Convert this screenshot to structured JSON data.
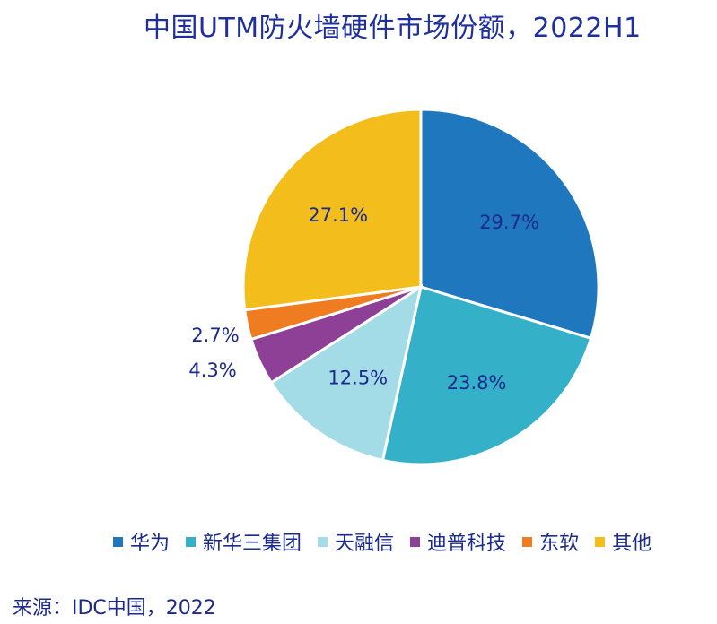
{
  "colors": {
    "title": "#1f2fa0",
    "label_dark": "#1b2a8c",
    "series": [
      "#1f77be",
      "#35b0c9",
      "#a3dce6",
      "#8e3f96",
      "#f07c22",
      "#f3be1c"
    ]
  },
  "chart_data": {
    "type": "pie",
    "title": "中国UTM防火墙硬件市场份额，2022H1",
    "categories": [
      "华为",
      "新华三集团",
      "天融信",
      "迪普科技",
      "东软",
      "其他"
    ],
    "values": [
      29.7,
      23.8,
      12.5,
      4.3,
      2.7,
      27.1
    ],
    "labels": [
      "29.7%",
      "23.8%",
      "12.5%",
      "4.3%",
      "2.7%",
      "27.1%"
    ],
    "legend_position": "bottom"
  },
  "source": "来源：IDC中国，2022"
}
